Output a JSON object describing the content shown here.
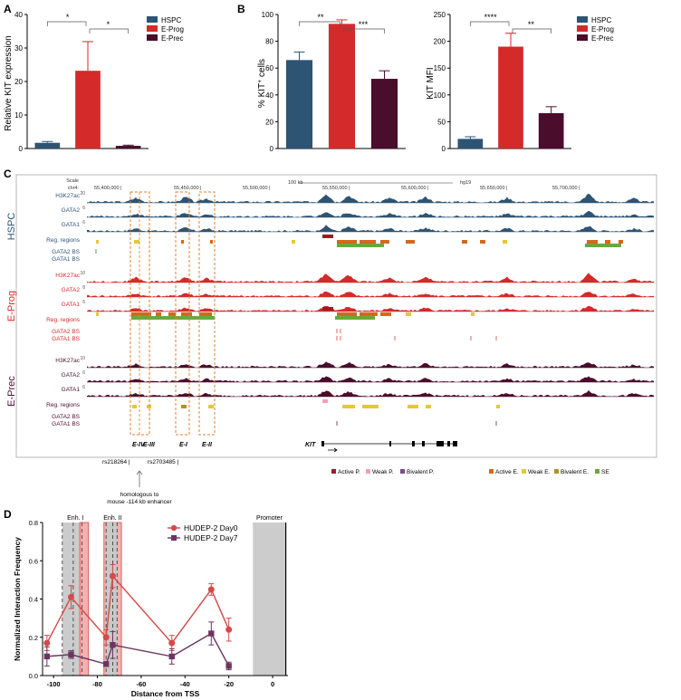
{
  "colors": {
    "hspc": "#2e5474",
    "eprog": "#d42a2a",
    "eprec": "#4a0d2c",
    "active_p": "#9b1d20",
    "weak_p": "#f4a0b0",
    "bivalent_p": "#7b4a8c",
    "active_e": "#d2691e",
    "weak_e": "#e8c53a",
    "bivalent_e": "#b8901e",
    "se": "#6aa83e",
    "d0": "#d44a4a",
    "d7": "#6b3560",
    "enh_box": "#e08030"
  },
  "panels": {
    "A": {
      "letter": "A",
      "ylabel": "Relative KIT expression",
      "sig": [
        "*",
        "*"
      ],
      "chart_data": {
        "type": "bar",
        "categories": [
          "HSPC",
          "E-Prog",
          "E-Prec"
        ],
        "values": [
          1.7,
          23.2,
          0.8
        ],
        "errors": [
          0.4,
          8.7,
          0.2
        ],
        "ylim": [
          0,
          40
        ],
        "yticks": [
          "0",
          "10",
          "20",
          "30",
          "40"
        ]
      }
    },
    "B1": {
      "letter": "B",
      "ylabel": "% KIT+ cells",
      "ylabel_main": "% KIT",
      "ylabel_sup": "+",
      "ylabel_tail": " cells",
      "sig": [
        "**",
        "***"
      ],
      "chart_data": {
        "type": "bar",
        "categories": [
          "HSPC",
          "E-Prog",
          "E-Prec"
        ],
        "values": [
          66,
          93,
          52
        ],
        "errors": [
          6,
          3,
          6
        ],
        "ylim": [
          0,
          100
        ],
        "yticks": [
          "0",
          "20",
          "40",
          "60",
          "80",
          "100"
        ]
      }
    },
    "B2": {
      "ylabel": "KIT MFI",
      "sig": [
        "****",
        "**"
      ],
      "chart_data": {
        "type": "bar",
        "categories": [
          "HSPC",
          "E-Prog",
          "E-Prec"
        ],
        "values": [
          18,
          190,
          66
        ],
        "errors": [
          4,
          25,
          12
        ],
        "ylim": [
          0,
          250
        ],
        "yticks": [
          "0",
          "50",
          "100",
          "150",
          "200",
          "250"
        ]
      }
    },
    "legendAB": [
      "HSPC",
      "E-Prog",
      "E-Prec"
    ]
  },
  "browser": {
    "letter": "C",
    "scale_label": "Scale",
    "scale_bar": "100 kb",
    "assembly": "hg19",
    "chrom": "chr4:",
    "coords": [
      "55,400,000",
      "55,450,000",
      "55,500,000",
      "55,550,000",
      "55,600,000",
      "55,650,000",
      "55,700,000"
    ],
    "groups": [
      {
        "name": "HSPC",
        "tracks": [
          {
            "label": "H3K27ac",
            "scale": "20"
          },
          {
            "label": "GATA2",
            "scale": "6"
          },
          {
            "label": "GATA1",
            "scale": "6"
          },
          {
            "label": "Reg. regions"
          },
          {
            "label": "GATA2 BS"
          },
          {
            "label": "GATA1 BS"
          }
        ]
      },
      {
        "name": "E-Prog",
        "tracks": [
          {
            "label": "H3K27ac",
            "scale": "10"
          },
          {
            "label": "GATA2",
            "scale": "8"
          },
          {
            "label": "GATA1",
            "scale": "6"
          },
          {
            "label": "Reg. regions"
          },
          {
            "label": "GATA2 BS"
          },
          {
            "label": "GATA1 BS"
          }
        ]
      },
      {
        "name": "E-Prec",
        "tracks": [
          {
            "label": "H3K27ac",
            "scale": "10"
          },
          {
            "label": "GATA2",
            "scale": "6"
          },
          {
            "label": "GATA1",
            "scale": "6"
          },
          {
            "label": "Reg. regions"
          },
          {
            "label": "GATA2 BS"
          },
          {
            "label": "GATA1 BS"
          }
        ]
      }
    ],
    "enhancers": [
      "E-IV",
      "E-III",
      "E-I",
      "E-II"
    ],
    "gene": "KIT",
    "snps": [
      "rs218264",
      "rs2703485"
    ],
    "annotation": [
      "homologous to",
      "mouse -114 kb enhancer"
    ],
    "legend": [
      "Active P.",
      "Weak P.",
      "Bivalent P.",
      "Active E.",
      "Weak E.",
      "Bivalent E.",
      "SE"
    ]
  },
  "panelD": {
    "letter": "D",
    "regions": [
      "Enh. I",
      "Enh. II",
      "Promoter"
    ],
    "chart_data": {
      "type": "line",
      "title": "",
      "xlabel": "Distance from TSS",
      "ylabel": "Normalized Interaction Frequency",
      "xlim": [
        -105,
        7
      ],
      "ylim": [
        0,
        0.8
      ],
      "xticks": [
        "-100",
        "-80",
        "-60",
        "-40",
        "-20",
        "0"
      ],
      "yticks": [
        "0.0",
        "0.2",
        "0.4",
        "0.6",
        "0.8"
      ],
      "series": [
        {
          "name": "HUDEP-2 Day0",
          "x": [
            -103,
            -92,
            -76,
            -73,
            -46,
            -28,
            -20
          ],
          "y": [
            0.17,
            0.41,
            0.2,
            0.52,
            0.17,
            0.45,
            0.24
          ],
          "err": [
            0.04,
            0.06,
            0.04,
            0.06,
            0.04,
            0.03,
            0.06
          ]
        },
        {
          "name": "HUDEP-2 Day7",
          "x": [
            -103,
            -92,
            -76,
            -73,
            -46,
            -28,
            -20
          ],
          "y": [
            0.1,
            0.11,
            0.06,
            0.16,
            0.1,
            0.22,
            0.05
          ],
          "err": [
            0.05,
            0.02,
            0.01,
            0.07,
            0.04,
            0.06,
            0.02
          ]
        }
      ]
    }
  }
}
